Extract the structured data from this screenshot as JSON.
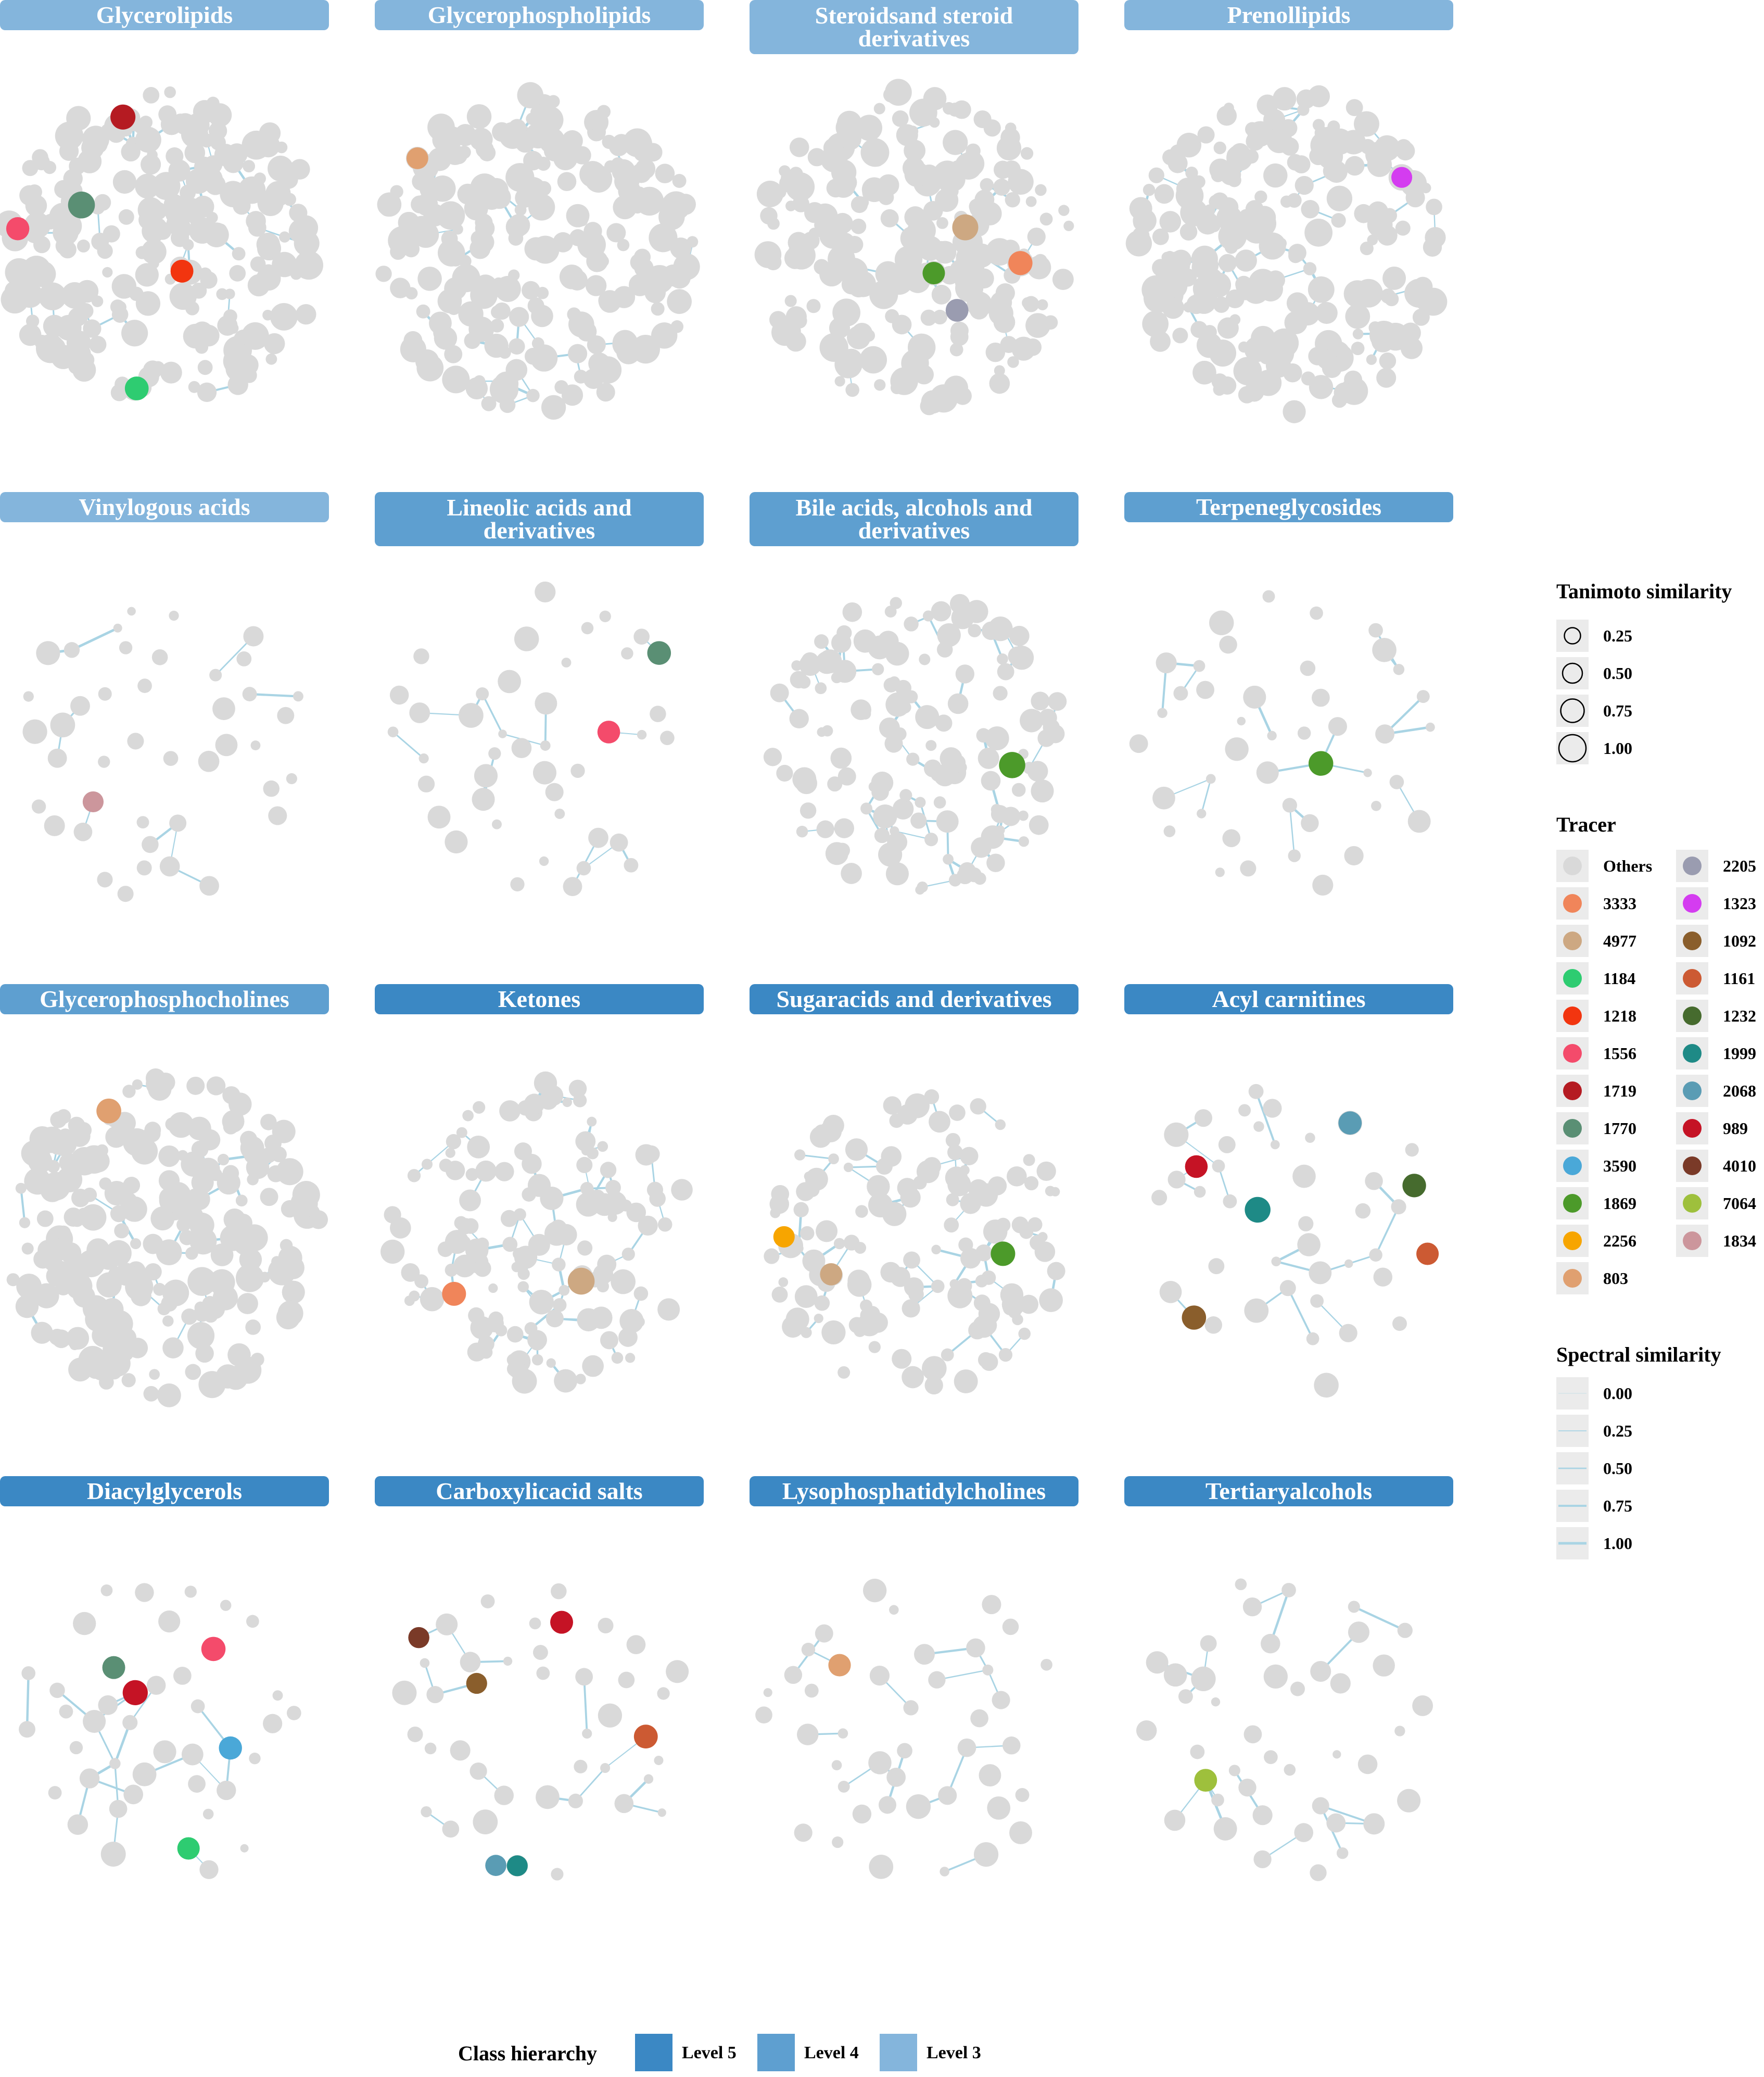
{
  "colors": {
    "node_gray": "#d9d9d9",
    "edge": "#a9d4e4",
    "level5": "#3b88c4",
    "level4": "#5e9fd0",
    "level3": "#84b5dc",
    "legend_bg": "#ebebeb"
  },
  "tracer_colors": {
    "Others": "#d9d9d9",
    "3333": "#f0855a",
    "4977": "#cda882",
    "1184": "#2ecc71",
    "1218": "#f2350f",
    "1556": "#f44b6b",
    "1719": "#b51b22",
    "1770": "#5a8f74",
    "3590": "#4aa8d8",
    "1869": "#4c9a2a",
    "2256": "#f7a500",
    "803": "#e0a070",
    "2205": "#9a9cb0",
    "1323": "#d43cf0",
    "1092": "#8a5e2c",
    "1161": "#cc5a33",
    "1232": "#466b2e",
    "1999": "#1e8a86",
    "2068": "#5a9cb4",
    "989": "#c51325",
    "4010": "#7a3a28",
    "7064": "#9ec03c",
    "1834": "#cc969c"
  },
  "panels": [
    {
      "title_lines": [
        "Glycerolipids"
      ],
      "level": "level3",
      "pattern": "dense",
      "tracers": [
        "1719",
        "1184",
        "1556",
        "1770",
        "1218"
      ]
    },
    {
      "title_lines": [
        "Glycerophospholipids"
      ],
      "level": "level3",
      "pattern": "dense",
      "tracers": [
        "803"
      ]
    },
    {
      "title_lines": [
        "Steroidsand steroid",
        "derivatives"
      ],
      "level": "level3",
      "pattern": "dense",
      "tracers": [
        "4977",
        "1869",
        "2205",
        "3333"
      ]
    },
    {
      "title_lines": [
        "Prenollipids"
      ],
      "level": "level3",
      "pattern": "dense",
      "tracers": [
        "1323"
      ]
    },
    {
      "title_lines": [
        "Vinylogous acids"
      ],
      "level": "level3",
      "pattern": "sparse",
      "tracers": [
        "1834"
      ]
    },
    {
      "title_lines": [
        "Lineolic acids and",
        "derivatives"
      ],
      "level": "level4",
      "pattern": "sparse",
      "tracers": [
        "1556",
        "1770"
      ]
    },
    {
      "title_lines": [
        "Bile acids, alcohols and",
        "derivatives"
      ],
      "level": "level4",
      "pattern": "medium",
      "tracers": [
        "1869"
      ]
    },
    {
      "title_lines": [
        "Terpeneglycosides"
      ],
      "level": "level4",
      "pattern": "sparse",
      "tracers": [
        "1869"
      ]
    },
    {
      "title_lines": [
        "Glycerophosphocholines"
      ],
      "level": "level4",
      "pattern": "dense",
      "tracers": [
        "803"
      ]
    },
    {
      "title_lines": [
        "Ketones"
      ],
      "level": "level5",
      "pattern": "medium",
      "tracers": [
        "3333",
        "4977"
      ]
    },
    {
      "title_lines": [
        "Sugaracids and derivatives"
      ],
      "level": "level5",
      "pattern": "medium",
      "tracers": [
        "4977",
        "1869",
        "2256"
      ]
    },
    {
      "title_lines": [
        "Acyl carnitines"
      ],
      "level": "level5",
      "pattern": "sparse",
      "tracers": [
        "1232",
        "989",
        "1092",
        "1161",
        "1999",
        "2068"
      ]
    },
    {
      "title_lines": [
        "Diacylglycerols"
      ],
      "level": "level5",
      "pattern": "sparse",
      "tracers": [
        "1770",
        "1556",
        "1184",
        "3590",
        "989"
      ]
    },
    {
      "title_lines": [
        "Carboxylicacid salts"
      ],
      "level": "level5",
      "pattern": "sparse",
      "tracers": [
        "4010",
        "1092",
        "1161",
        "989",
        "2068",
        "1999"
      ]
    },
    {
      "title_lines": [
        "Lysophosphatidylcholines"
      ],
      "level": "level5",
      "pattern": "sparse",
      "tracers": [
        "803"
      ]
    },
    {
      "title_lines": [
        "Tertiaryalcohols"
      ],
      "level": "level5",
      "pattern": "sparse",
      "tracers": [
        "7064"
      ]
    }
  ],
  "legend": {
    "tanimoto": {
      "title": "Tanimoto similarity",
      "values": [
        "0.25",
        "0.50",
        "0.75",
        "1.00"
      ],
      "sizes": [
        0.25,
        0.5,
        0.75,
        1.0
      ]
    },
    "tracer": {
      "title": "Tracer",
      "col1": [
        "Others",
        "3333",
        "4977",
        "1184",
        "1218",
        "1556",
        "1719",
        "1770",
        "3590",
        "1869",
        "2256",
        "803"
      ],
      "col2": [
        "2205",
        "1323",
        "1092",
        "1161",
        "1232",
        "1999",
        "2068",
        "989",
        "4010",
        "7064",
        "1834"
      ]
    },
    "spectral": {
      "title": "Spectral similarity",
      "values": [
        "0.00",
        "0.25",
        "0.50",
        "0.75",
        "1.00"
      ],
      "weights": [
        0.0,
        0.25,
        0.5,
        0.75,
        1.0
      ]
    }
  },
  "hierarchy": {
    "title": "Class hierarchy",
    "levels": [
      {
        "label": "Level 5",
        "key": "level5"
      },
      {
        "label": "Level 4",
        "key": "level4"
      },
      {
        "label": "Level 3",
        "key": "level3"
      }
    ]
  }
}
